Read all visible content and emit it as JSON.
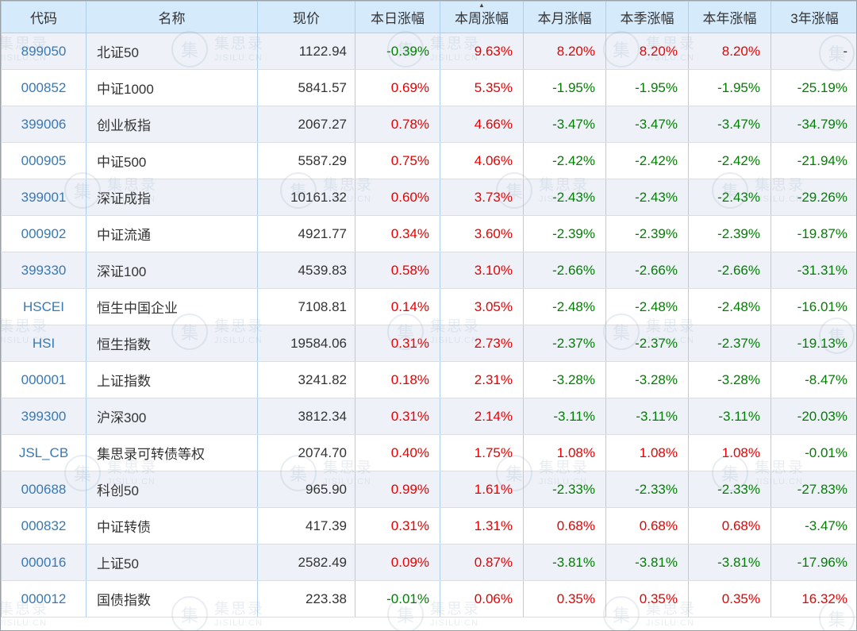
{
  "colors": {
    "up": "#ea0000",
    "down": "#008000",
    "link": "#3779b5",
    "header_bg": "#d5eafb",
    "row_alt_bg": "#eef2f8",
    "border": "#aecfec"
  },
  "watermark": {
    "logo_glyph": "集",
    "brand": "集思录",
    "domain": "JISILU.CN"
  },
  "table": {
    "sort_arrow": "▲",
    "columns": [
      {
        "label": "代码",
        "sorted": false
      },
      {
        "label": "名称",
        "sorted": false
      },
      {
        "label": "现价",
        "sorted": false
      },
      {
        "label": "本日涨幅",
        "sorted": false
      },
      {
        "label": "本周涨幅",
        "sorted": true
      },
      {
        "label": "本月涨幅",
        "sorted": false
      },
      {
        "label": "本季涨幅",
        "sorted": false
      },
      {
        "label": "本年涨幅",
        "sorted": false
      },
      {
        "label": "3年涨幅",
        "sorted": false
      }
    ],
    "rows": [
      [
        "899050",
        "北证50",
        "1122.94",
        "-0.39%",
        "9.63%",
        "8.20%",
        "8.20%",
        "8.20%",
        "-"
      ],
      [
        "000852",
        "中证1000",
        "5841.57",
        "0.69%",
        "5.35%",
        "-1.95%",
        "-1.95%",
        "-1.95%",
        "-25.19%"
      ],
      [
        "399006",
        "创业板指",
        "2067.27",
        "0.78%",
        "4.66%",
        "-3.47%",
        "-3.47%",
        "-3.47%",
        "-34.79%"
      ],
      [
        "000905",
        "中证500",
        "5587.29",
        "0.75%",
        "4.06%",
        "-2.42%",
        "-2.42%",
        "-2.42%",
        "-21.94%"
      ],
      [
        "399001",
        "深证成指",
        "10161.32",
        "0.60%",
        "3.73%",
        "-2.43%",
        "-2.43%",
        "-2.43%",
        "-29.26%"
      ],
      [
        "000902",
        "中证流通",
        "4921.77",
        "0.34%",
        "3.60%",
        "-2.39%",
        "-2.39%",
        "-2.39%",
        "-19.87%"
      ],
      [
        "399330",
        "深证100",
        "4539.83",
        "0.58%",
        "3.10%",
        "-2.66%",
        "-2.66%",
        "-2.66%",
        "-31.31%"
      ],
      [
        "HSCEI",
        "恒生中国企业",
        "7108.81",
        "0.14%",
        "3.05%",
        "-2.48%",
        "-2.48%",
        "-2.48%",
        "-16.01%"
      ],
      [
        "HSI",
        "恒生指数",
        "19584.06",
        "0.31%",
        "2.73%",
        "-2.37%",
        "-2.37%",
        "-2.37%",
        "-19.13%"
      ],
      [
        "000001",
        "上证指数",
        "3241.82",
        "0.18%",
        "2.31%",
        "-3.28%",
        "-3.28%",
        "-3.28%",
        "-8.47%"
      ],
      [
        "399300",
        "沪深300",
        "3812.34",
        "0.31%",
        "2.14%",
        "-3.11%",
        "-3.11%",
        "-3.11%",
        "-20.03%"
      ],
      [
        "JSL_CB",
        "集思录可转债等权",
        "2074.70",
        "0.40%",
        "1.75%",
        "1.08%",
        "1.08%",
        "1.08%",
        "-0.01%"
      ],
      [
        "000688",
        "科创50",
        "965.90",
        "0.99%",
        "1.61%",
        "-2.33%",
        "-2.33%",
        "-2.33%",
        "-27.83%"
      ],
      [
        "000832",
        "中证转债",
        "417.39",
        "0.31%",
        "1.31%",
        "0.68%",
        "0.68%",
        "0.68%",
        "-3.47%"
      ],
      [
        "000016",
        "上证50",
        "2582.49",
        "0.09%",
        "0.87%",
        "-3.81%",
        "-3.81%",
        "-3.81%",
        "-17.96%"
      ],
      [
        "000012",
        "国债指数",
        "223.38",
        "-0.01%",
        "0.06%",
        "0.35%",
        "0.35%",
        "0.35%",
        "16.32%"
      ]
    ]
  }
}
